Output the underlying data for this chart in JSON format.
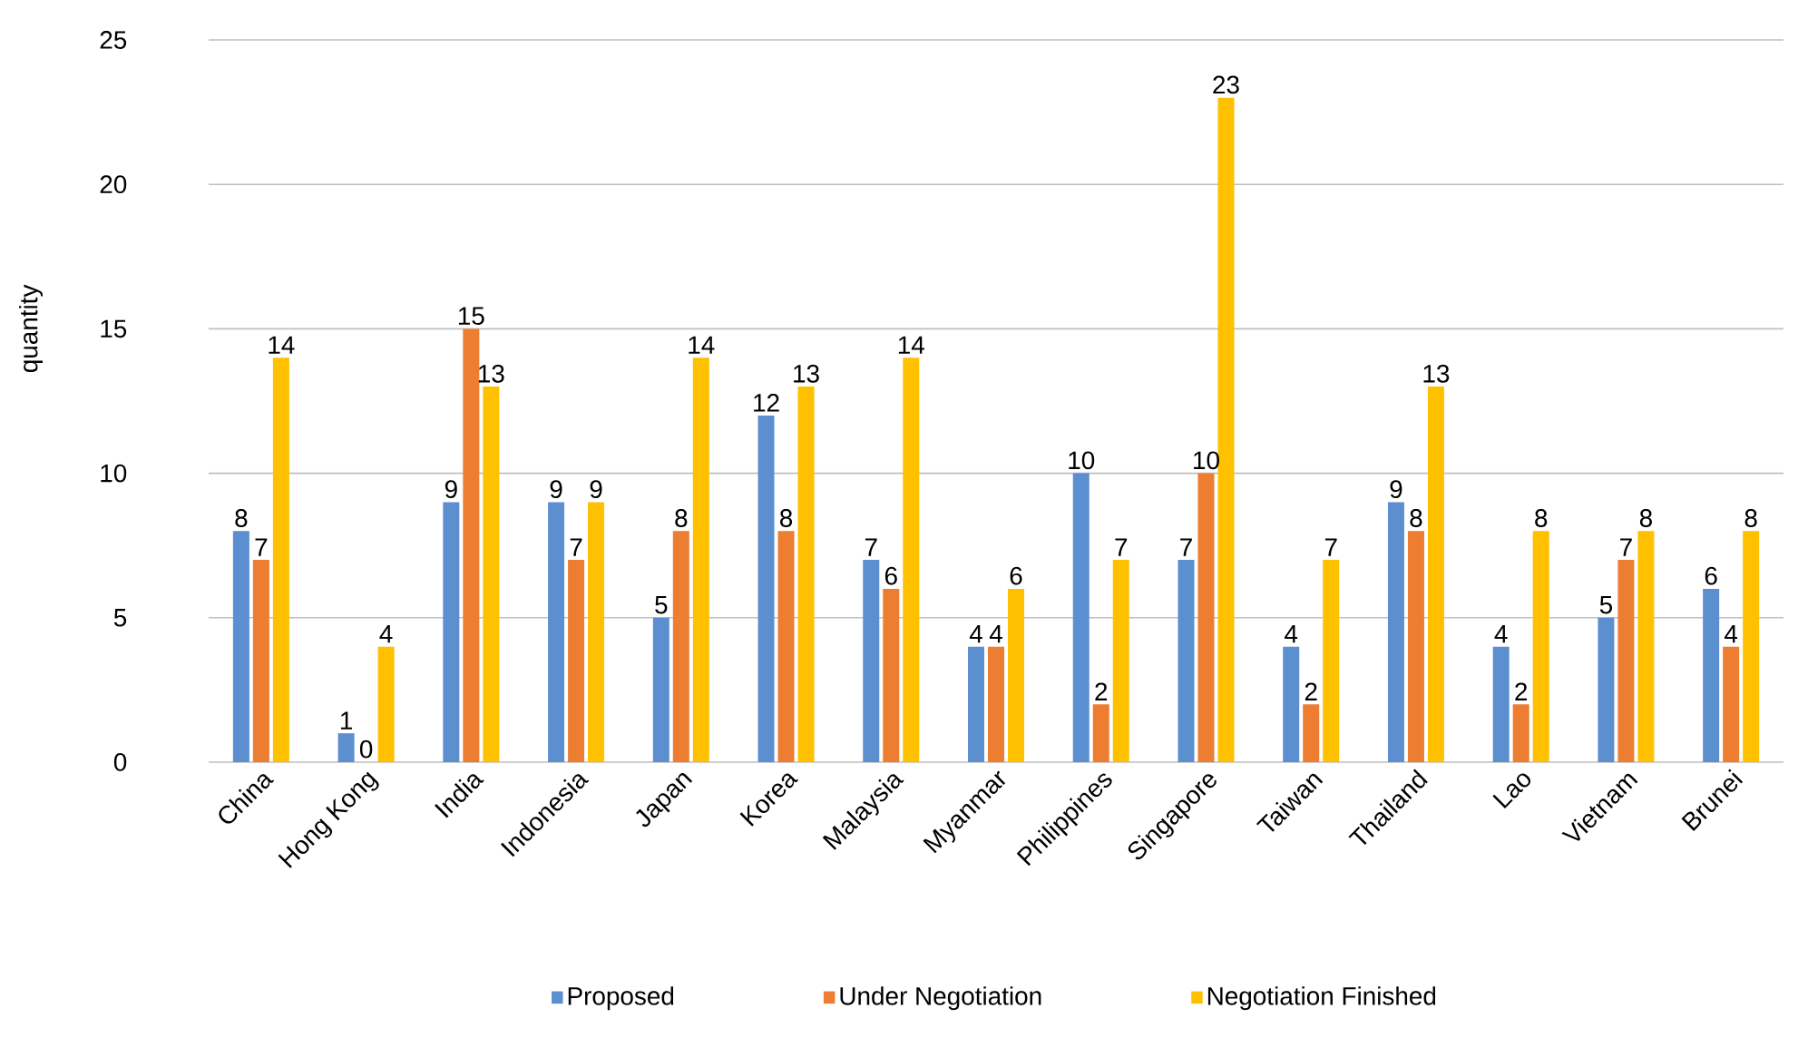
{
  "chart_data": {
    "type": "bar",
    "ylabel": "quantity",
    "categories": [
      "China",
      "Hong Kong",
      "India",
      "Indonesia",
      "Japan",
      "Korea",
      "Malaysia",
      "Myanmar",
      "Philippines",
      "Singapore",
      "Taiwan",
      "Thailand",
      "Lao",
      "Vietnam",
      "Brunei"
    ],
    "series": [
      {
        "name": "Proposed",
        "color": "#5b8fcf",
        "values": [
          8,
          1,
          9,
          9,
          5,
          12,
          7,
          4,
          10,
          7,
          4,
          9,
          4,
          5,
          6
        ]
      },
      {
        "name": "Under Negotiation",
        "color": "#ed7d31",
        "values": [
          7,
          0,
          15,
          7,
          8,
          8,
          6,
          4,
          2,
          10,
          2,
          8,
          2,
          7,
          4
        ]
      },
      {
        "name": "Negotiation Finished",
        "color": "#ffc000",
        "values": [
          14,
          4,
          13,
          9,
          14,
          13,
          14,
          6,
          7,
          23,
          7,
          13,
          8,
          8,
          8
        ]
      }
    ],
    "ylim": [
      0,
      25
    ],
    "yticks": [
      0,
      5,
      10,
      15,
      20,
      25
    ],
    "grid": "y",
    "legend": "bottom",
    "data_labels": true
  }
}
